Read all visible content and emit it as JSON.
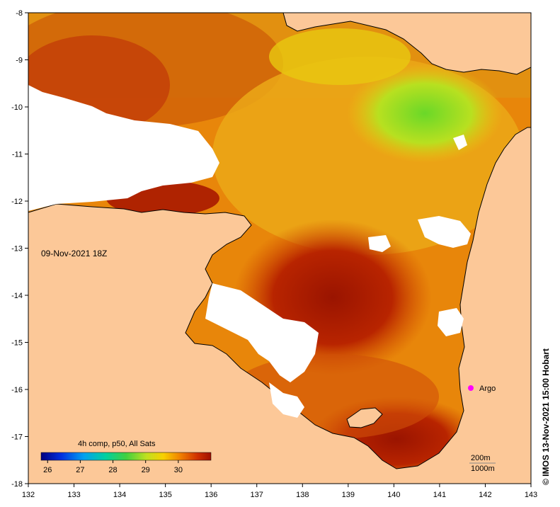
{
  "map": {
    "date_label": "09-Nov-2021 18Z",
    "credit": "© IMOS 13-Nov-2021 15:00 Hobart",
    "x_ticks": [
      "132",
      "133",
      "134",
      "135",
      "136",
      "137",
      "138",
      "139",
      "140",
      "141",
      "142",
      "143"
    ],
    "y_ticks": [
      "-8",
      "-9",
      "-10",
      "-11",
      "-12",
      "-13",
      "-14",
      "-15",
      "-16",
      "-17",
      "-18"
    ],
    "colorbar": {
      "title": "4h comp, p50, All Sats",
      "ticks": [
        "26",
        "27",
        "28",
        "29",
        "30"
      ],
      "range": [
        25.8,
        31.0
      ]
    },
    "argo": {
      "label": "Argo",
      "lon": 141.7,
      "lat": -16.0,
      "color": "#ff00ff"
    },
    "contour_legend": [
      "200m",
      "1000m"
    ],
    "colors": {
      "land": "#fcc898",
      "cloud": "#ffffff",
      "sst_hot": "#a01800",
      "sst_warm": "#e06a00",
      "sst_mid": "#f4a800",
      "sst_cool": "#a0e020"
    }
  }
}
